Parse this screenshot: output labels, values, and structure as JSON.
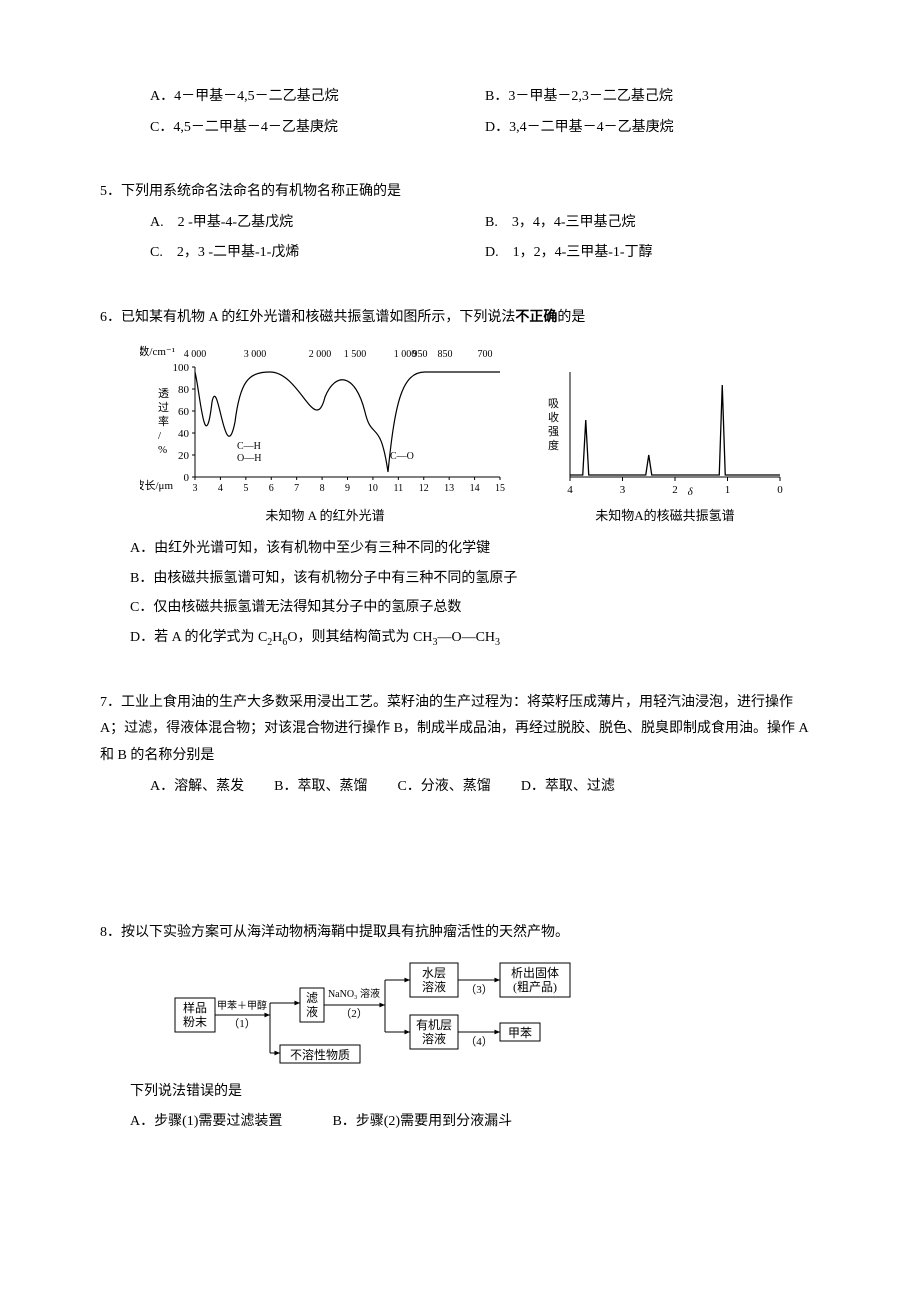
{
  "q4": {
    "optA": "A．4－甲基－4,5－二乙基己烷",
    "optB": "B．3－甲基－2,3－二乙基己烷",
    "optC": "C．4,5－二甲基－4－乙基庚烷",
    "optD": "D．3,4－二甲基－4－乙基庚烷"
  },
  "q5": {
    "stem": "5．下列用系统命名法命名的有机物名称正确的是",
    "optA": "A.　2 -甲基-4-乙基戊烷",
    "optB": "B.　3，4，4-三甲基己烷",
    "optC": "C.　2，3 -二甲基-1-戊烯",
    "optD": "D.　1，2，4-三甲基-1-丁醇"
  },
  "q6": {
    "stem_prefix": "6．已知某有机物 A 的红外光谱和核磁共振氢谱如图所示，下列说法",
    "stem_bold": "不正确",
    "stem_suffix": "的是",
    "optA": "A．由红外光谱可知，该有机物中至少有三种不同的化学键",
    "optB": "B．由核磁共振氢谱可知，该有机物分子中有三种不同的氢原子",
    "optC": "C．仅由核磁共振氢谱无法得知其分子中的氢原子总数",
    "optD_html": "D．若 A 的化学式为 C<sub>2</sub>H<sub>6</sub>O，则其结构简式为 CH<sub>3</sub>―O―CH<sub>3</sub>",
    "ir": {
      "caption": "未知物 A 的红外光谱",
      "y_label": "透过率/%",
      "y_ticks": [
        0,
        20,
        40,
        60,
        80,
        100
      ],
      "x_top_label": "波数/cm⁻¹",
      "x_top_ticks": [
        "4 000",
        "3 000",
        "2 000",
        "1 500",
        "1 000",
        "950",
        "850",
        "700"
      ],
      "x_bottom_label": "波长/μm",
      "x_bottom_ticks": [
        3,
        4,
        5,
        6,
        7,
        8,
        9,
        10,
        11,
        12,
        13,
        14,
        15
      ],
      "bond_labels": [
        "C—H",
        "O—H",
        "C—O"
      ],
      "stroke": "#000000",
      "bg": "#ffffff"
    },
    "nmr": {
      "caption": "未知物A的核磁共振氢谱",
      "y_label": "吸收强度",
      "x_ticks": [
        4,
        3,
        2,
        1,
        0
      ],
      "x_delta": "δ",
      "peaks": [
        {
          "x": 3.7,
          "h": 55
        },
        {
          "x": 2.5,
          "h": 20
        },
        {
          "x": 1.1,
          "h": 90
        }
      ],
      "stroke": "#000000",
      "bg": "#ffffff"
    }
  },
  "q7": {
    "stem": "7．工业上食用油的生产大多数采用浸出工艺。菜籽油的生产过程为：将菜籽压成薄片，用轻汽油浸泡，进行操作 A；过滤，得液体混合物；对该混合物进行操作 B，制成半成品油，再经过脱胶、脱色、脱臭即制成食用油。操作 A 和 B 的名称分别是",
    "optA": "A．溶解、蒸发",
    "optB": "B．萃取、蒸馏",
    "optC": "C．分液、蒸馏",
    "optD": "D．萃取、过滤"
  },
  "q8": {
    "stem": "8．按以下实验方案可从海洋动物柄海鞘中提取具有抗肿瘤活性的天然产物。",
    "flow": {
      "boxes": {
        "sample": "样品\n粉末",
        "filtrate": "滤\n液",
        "insoluble": "不溶性物质",
        "aq": "水层\n溶液",
        "org": "有机层\n溶液",
        "solid": "析出固体\n(粗产品)",
        "toluene": "甲苯"
      },
      "edge_labels": {
        "e1": "甲苯＋甲醇",
        "s1": "（1）",
        "e2": "NaNO₃ 溶液",
        "s2": "（2）",
        "s3": "（3）",
        "s4": "（4）"
      },
      "stroke": "#000000",
      "font_size": 12
    },
    "sub": "下列说法错误的是",
    "optA": "A．步骤(1)需要过滤装置",
    "optB": "B．步骤(2)需要用到分液漏斗"
  }
}
